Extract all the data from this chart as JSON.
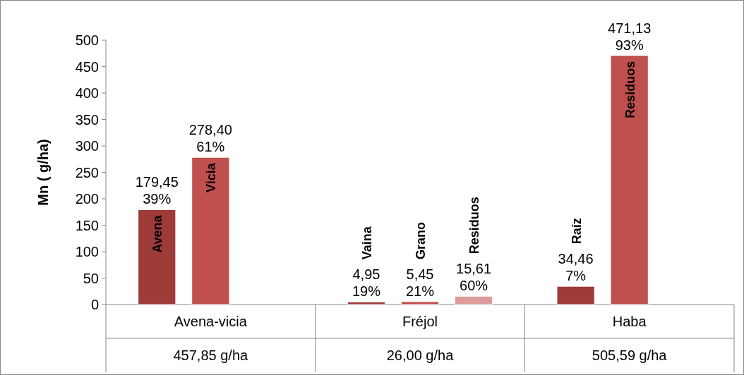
{
  "chart_data": {
    "type": "bar",
    "ylabel": "Mn ( g/ha)",
    "categories": [
      "Avena-vicia",
      "Fréjol",
      "Haba"
    ],
    "series": [
      {
        "color": "#9e3b39",
        "values": [
          179.45,
          4.95,
          34.46
        ],
        "value_labels": [
          "179,45\n39%",
          "4,95\n19%",
          "34,46\n7%"
        ]
      },
      {
        "color": "#c0504d",
        "values": [
          278.4,
          5.45,
          471.13
        ],
        "value_labels": [
          "278,40\n61%",
          "5,45\n21%",
          "471,13\n93%"
        ]
      },
      {
        "color": "#dc9c9a",
        "values": [
          null,
          15.61,
          null
        ],
        "value_labels": [
          null,
          "15,61\n60%",
          null
        ]
      }
    ],
    "annotations": [
      "Avena",
      "Vicia",
      "Vaina",
      "Grano",
      "Residuos",
      "Raíz",
      "Residuos"
    ],
    "totals": [
      "457,85 g/ha",
      "26,00 g/ha",
      "505,59 g/ha"
    ],
    "ylim": [
      0,
      500
    ],
    "yticks": [
      0,
      50,
      100,
      150,
      200,
      250,
      300,
      350,
      400,
      450,
      500
    ],
    "grid": false
  }
}
